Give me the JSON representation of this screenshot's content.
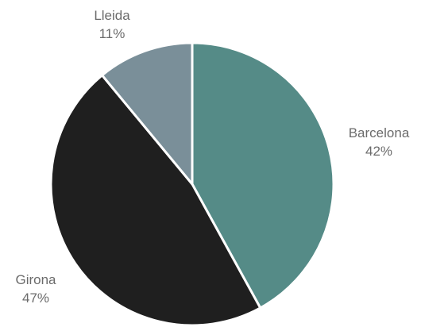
{
  "chart_data": {
    "type": "pie",
    "title": "",
    "slices": [
      {
        "label": "Barcelona",
        "value": 42,
        "value_label": "42%",
        "color": "#558b87"
      },
      {
        "label": "Girona",
        "value": 47,
        "value_label": "47%",
        "color": "#1f1f1f"
      },
      {
        "label": "Lleida",
        "value": 11,
        "value_label": "11%",
        "color": "#7a8f99"
      }
    ],
    "start": "12 o'clock",
    "direction": "clockwise",
    "legend": "none",
    "slice_border_color": "#ffffff"
  }
}
